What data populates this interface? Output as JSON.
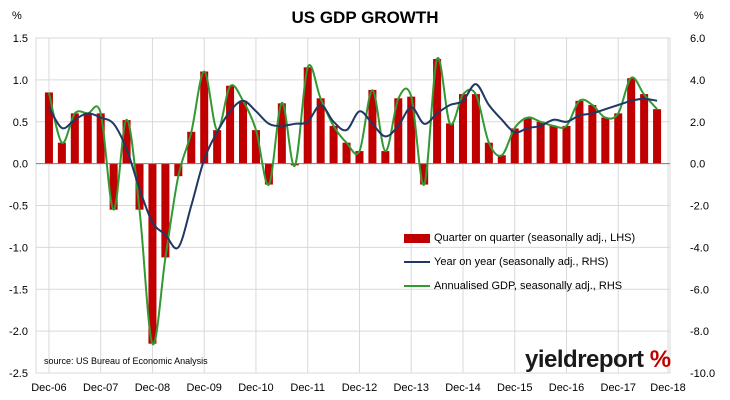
{
  "chart_data": {
    "type": "bar",
    "title": "US GDP GROWTH",
    "ylabel_left": "%",
    "ylabel_right": "%",
    "ylim_left": [
      -2.5,
      1.5
    ],
    "ylim_right": [
      -10.0,
      6.0
    ],
    "yticks_left": [
      "1.5",
      "1.0",
      "0.5",
      "0.0",
      "-0.5",
      "-1.0",
      "-1.5",
      "-2.0",
      "-2.5"
    ],
    "yticks_right": [
      "6.0",
      "4.0",
      "2.0",
      "0.0",
      "-2.0",
      "-4.0",
      "-6.0",
      "-8.0",
      "-10.0"
    ],
    "x_tick_labels": [
      "Dec-06",
      "Dec-07",
      "Dec-08",
      "Dec-09",
      "Dec-10",
      "Dec-11",
      "Dec-12",
      "Dec-13",
      "Dec-14",
      "Dec-15",
      "Dec-16",
      "Dec-17",
      "Dec-18"
    ],
    "source": "source: US Bureau of Economic Analysis",
    "brand": {
      "main": "yieldreport",
      "pct": " %"
    },
    "colors": {
      "bars": "#c00000",
      "yoy_line": "#1f3864",
      "annualised_line": "#339933",
      "grid": "#d9d9d9"
    },
    "series": [
      {
        "name": "Quarter on quarter (seasonally adj., LHS)",
        "kind": "bar",
        "axis": "left",
        "values": [
          0.85,
          0.25,
          0.6,
          0.6,
          0.6,
          -0.55,
          0.52,
          -0.55,
          -2.15,
          -1.12,
          -0.15,
          0.38,
          1.1,
          0.4,
          0.93,
          0.75,
          0.4,
          -0.25,
          0.72,
          -0.02,
          1.15,
          0.78,
          0.45,
          0.25,
          0.15,
          0.88,
          0.15,
          0.78,
          0.8,
          -0.25,
          1.25,
          0.48,
          0.83,
          0.83,
          0.25,
          0.1,
          0.42,
          0.55,
          0.5,
          0.45,
          0.45,
          0.75,
          0.7,
          0.55,
          0.6,
          1.02,
          0.83,
          0.65
        ]
      },
      {
        "name": "Year on year (seasonally adj., RHS)",
        "kind": "line",
        "axis": "right",
        "values": [
          2.7,
          1.7,
          2.1,
          2.4,
          2.2,
          1.9,
          0.7,
          -1.2,
          -2.8,
          -3.4,
          -4.0,
          -2.0,
          0.2,
          1.5,
          2.5,
          3.0,
          2.5,
          1.9,
          1.8,
          1.9,
          2.0,
          2.8,
          2.0,
          1.6,
          2.5,
          1.9,
          1.3,
          1.8,
          2.7,
          1.9,
          2.4,
          2.8,
          3.0,
          3.8,
          2.8,
          2.1,
          1.5,
          1.7,
          1.8,
          2.1,
          2.0,
          2.3,
          2.4,
          2.6,
          2.8,
          3.0,
          3.1,
          3.0
        ]
      },
      {
        "name": "Annualised GDP, seasonally adj., RHS",
        "kind": "line",
        "axis": "right",
        "values": [
          3.4,
          1.0,
          2.4,
          2.4,
          2.4,
          -2.2,
          2.1,
          -2.2,
          -8.6,
          -4.5,
          -0.6,
          1.5,
          4.4,
          1.6,
          3.7,
          3.0,
          1.6,
          -1.0,
          2.9,
          -0.1,
          4.6,
          3.1,
          1.8,
          1.0,
          0.6,
          3.5,
          0.6,
          3.1,
          3.2,
          -1.0,
          5.0,
          1.9,
          3.3,
          3.3,
          1.0,
          0.4,
          1.7,
          2.2,
          2.0,
          1.8,
          1.8,
          3.0,
          2.8,
          2.2,
          2.4,
          4.1,
          3.3,
          2.6
        ]
      }
    ]
  }
}
